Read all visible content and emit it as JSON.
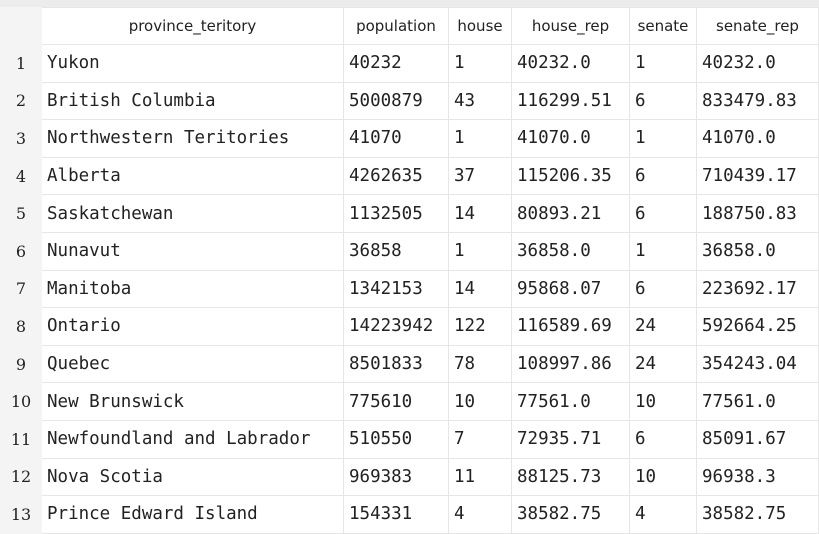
{
  "table": {
    "columns": [
      "province_teritory",
      "population",
      "house",
      "house_rep",
      "senate",
      "senate_rep"
    ],
    "rows": [
      {
        "index": "1",
        "cells": [
          "Yukon",
          "40232",
          "1",
          "40232.0",
          "1",
          "40232.0"
        ]
      },
      {
        "index": "2",
        "cells": [
          "British Columbia",
          "5000879",
          "43",
          "116299.51",
          "6",
          "833479.83"
        ]
      },
      {
        "index": "3",
        "cells": [
          "Northwestern Teritories",
          "41070",
          "1",
          "41070.0",
          "1",
          "41070.0"
        ]
      },
      {
        "index": "4",
        "cells": [
          "Alberta",
          "4262635",
          "37",
          "115206.35",
          "6",
          "710439.17"
        ]
      },
      {
        "index": "5",
        "cells": [
          "Saskatchewan",
          "1132505",
          "14",
          "80893.21",
          "6",
          "188750.83"
        ]
      },
      {
        "index": "6",
        "cells": [
          "Nunavut",
          "36858",
          "1",
          "36858.0",
          "1",
          "36858.0"
        ]
      },
      {
        "index": "7",
        "cells": [
          "Manitoba",
          "1342153",
          "14",
          "95868.07",
          "6",
          "223692.17"
        ]
      },
      {
        "index": "8",
        "cells": [
          "Ontario",
          "14223942",
          "122",
          "116589.69",
          "24",
          "592664.25"
        ]
      },
      {
        "index": "9",
        "cells": [
          "Quebec",
          "8501833",
          "78",
          "108997.86",
          "24",
          "354243.04"
        ]
      },
      {
        "index": "10",
        "cells": [
          "New Brunswick",
          "775610",
          "10",
          "77561.0",
          "10",
          "77561.0"
        ]
      },
      {
        "index": "11",
        "cells": [
          "Newfoundland and Labrador",
          "510550",
          "7",
          "72935.71",
          "6",
          "85091.67"
        ]
      },
      {
        "index": "12",
        "cells": [
          "Nova Scotia",
          "969383",
          "11",
          "88125.73",
          "10",
          "96938.3"
        ]
      },
      {
        "index": "13",
        "cells": [
          "Prince Edward Island",
          "154331",
          "4",
          "38582.75",
          "4",
          "38582.75"
        ]
      }
    ]
  }
}
